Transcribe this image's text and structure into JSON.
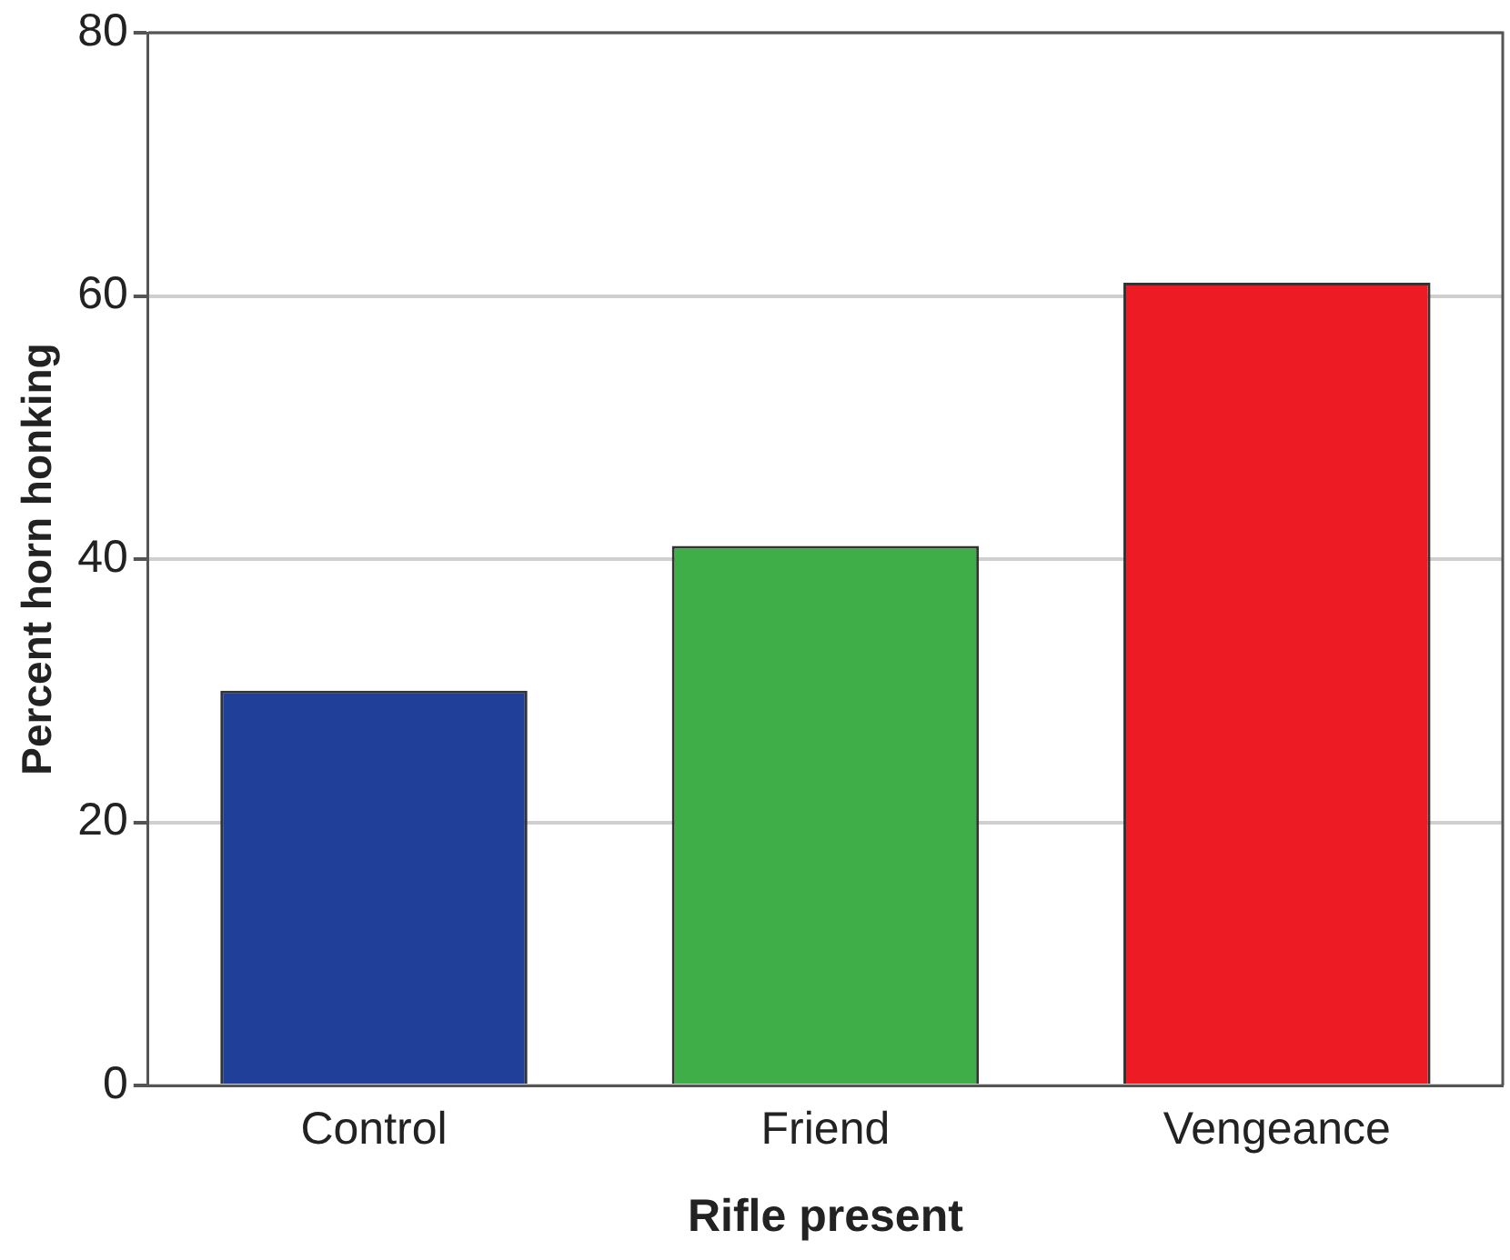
{
  "chart_data": {
    "type": "bar",
    "xlabel": "Rifle present",
    "ylabel": "Percent horn honking",
    "categories": [
      "Control",
      "Friend",
      "Vengeance"
    ],
    "values": [
      30,
      41,
      61
    ],
    "colors": [
      "#1f3f99",
      "#3fae49",
      "#ed1c24"
    ],
    "ylim": [
      0,
      80
    ],
    "yticks": [
      0,
      20,
      40,
      60,
      80
    ],
    "grid": "y"
  }
}
